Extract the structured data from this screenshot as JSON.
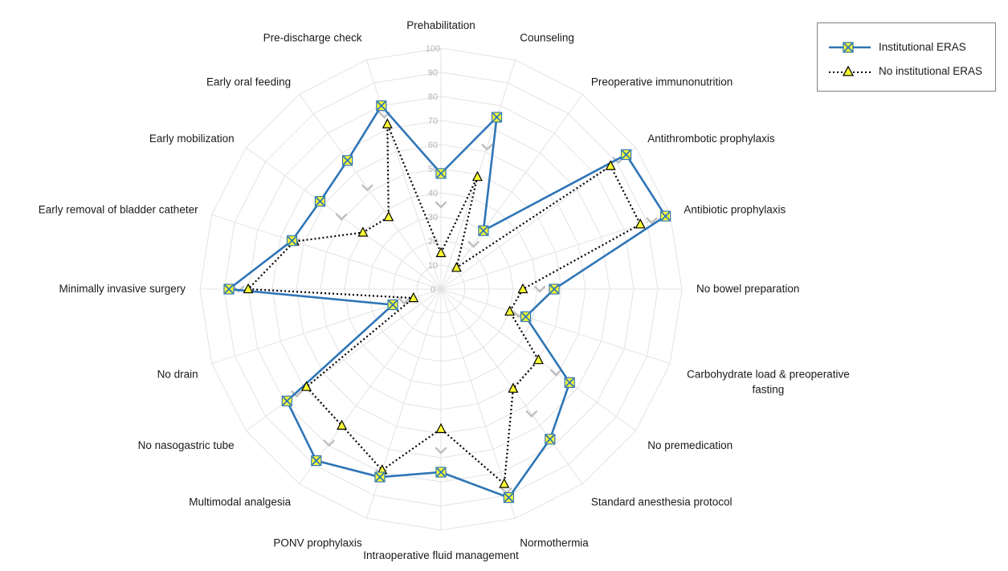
{
  "chart_data": {
    "type": "radar",
    "title": "",
    "r_range": [
      0,
      100
    ],
    "r_ticks": [
      0,
      10,
      20,
      30,
      40,
      50,
      60,
      70,
      80,
      90,
      100
    ],
    "grid": true,
    "legend_position": "top-right",
    "categories": [
      "Prehabilitation",
      "Counseling",
      "Preoperative immunonutrition",
      "Antithrombotic prophylaxis",
      "Antibiotic prophylaxis",
      "No bowel preparation",
      "Carbohydrate load & preoperative fasting",
      "No premedication",
      "Standard anesthesia protocol",
      "Normothermia",
      "Intraoperative fluid management",
      "PONV prophylaxis",
      "Multimodal analgesia",
      "No nasogastric tube",
      "No drain",
      "Minimally invasive surgery",
      "Early removal of bladder catheter",
      "Early mobilization",
      "Early oral feeding",
      "Pre-discharge check"
    ],
    "series": [
      {
        "name": "Institutional ERAS",
        "color": "#2e75b6",
        "marker_color": "#ffff33",
        "values": [
          48,
          75,
          30,
          95,
          98,
          47,
          37,
          66,
          77,
          91,
          76,
          82,
          88,
          79,
          21,
          88,
          65,
          62,
          66,
          80
        ]
      },
      {
        "name": "No institutional ERAS",
        "color": "#000000",
        "marker_color": "#ffff33",
        "values": [
          15,
          49,
          11,
          87,
          87,
          34,
          30,
          50,
          51,
          85,
          58,
          79,
          70,
          69,
          12,
          80,
          64,
          40,
          37,
          72
        ]
      }
    ],
    "unnamed_series": {
      "color": "#bfbfbf",
      "values": [
        35,
        62,
        23,
        91,
        92,
        41,
        34,
        59,
        64,
        88,
        67,
        80,
        79,
        74,
        16,
        84,
        64,
        51,
        52,
        76
      ]
    }
  }
}
